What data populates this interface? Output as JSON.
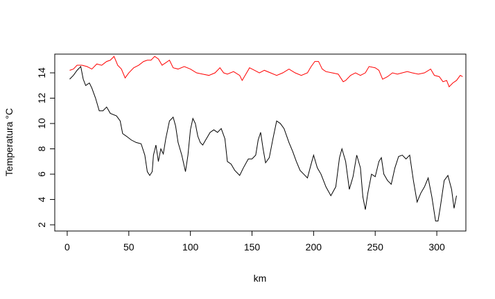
{
  "chart_data": {
    "type": "line",
    "xlabel": "km",
    "ylabel": "Temperatura °C",
    "xlim": [
      -10.1,
      323.6
    ],
    "ylim": [
      1.51,
      15.48
    ],
    "xticks": [
      0,
      50,
      100,
      150,
      200,
      250,
      300
    ],
    "yticks": [
      2,
      4,
      6,
      8,
      10,
      12,
      14
    ],
    "series": [
      {
        "color": "#000000",
        "x": [
          2,
          5,
          8,
          11,
          13,
          15,
          18,
          20,
          23,
          26,
          29,
          32,
          35,
          40,
          43,
          45,
          48,
          52,
          56,
          60,
          63,
          65,
          67,
          69,
          70,
          72,
          74,
          76,
          78,
          80,
          83,
          86,
          88,
          90,
          93,
          96,
          98,
          100,
          102,
          104,
          106,
          108,
          110,
          113,
          116,
          119,
          122,
          125,
          128,
          130,
          133,
          136,
          140,
          143,
          147,
          150,
          153,
          155,
          157,
          159,
          161,
          164,
          167,
          170,
          173,
          176,
          180,
          183,
          186,
          189,
          192,
          195,
          198,
          200,
          203,
          206,
          210,
          214,
          218,
          221,
          223,
          226,
          229,
          232,
          235,
          238,
          240,
          242,
          244,
          247,
          250,
          253,
          255,
          257,
          260,
          263,
          266,
          269,
          272,
          275,
          278,
          281,
          284,
          287,
          290,
          293,
          296,
          299,
          301,
          303,
          306,
          309,
          312,
          314,
          316
        ],
        "values": [
          13.5,
          13.8,
          14.2,
          14.5,
          13.5,
          13.0,
          13.2,
          12.8,
          12.0,
          11.0,
          11.0,
          11.3,
          10.8,
          10.6,
          10.2,
          9.2,
          9.0,
          8.7,
          8.5,
          8.4,
          7.5,
          6.2,
          5.9,
          6.2,
          7.5,
          8.3,
          7.0,
          8.0,
          7.6,
          8.8,
          10.2,
          10.5,
          9.8,
          8.5,
          7.5,
          6.2,
          7.5,
          9.5,
          10.4,
          10.0,
          9.0,
          8.5,
          8.3,
          8.8,
          9.3,
          9.5,
          9.3,
          9.6,
          8.8,
          7.0,
          6.8,
          6.3,
          5.9,
          6.5,
          7.2,
          7.2,
          7.5,
          8.7,
          9.3,
          8.0,
          6.9,
          7.3,
          8.8,
          10.2,
          10.0,
          9.6,
          8.5,
          7.8,
          7.0,
          6.3,
          6.0,
          5.7,
          6.8,
          7.5,
          6.5,
          6.0,
          5.0,
          4.3,
          5.0,
          7.3,
          8.0,
          7.0,
          4.8,
          5.8,
          7.5,
          6.5,
          4.2,
          3.2,
          4.5,
          6.0,
          5.8,
          7.0,
          7.3,
          6.0,
          5.5,
          5.2,
          6.5,
          7.4,
          7.5,
          7.2,
          7.5,
          5.5,
          3.8,
          4.5,
          5.0,
          5.7,
          4.2,
          2.3,
          2.3,
          3.5,
          5.5,
          5.9,
          4.8,
          3.3,
          4.3
        ]
      },
      {
        "color": "#ff0000",
        "x": [
          2,
          5,
          8,
          12,
          16,
          20,
          24,
          28,
          32,
          35,
          38,
          41,
          44,
          47,
          50,
          54,
          58,
          62,
          65,
          68,
          71,
          74,
          77,
          80,
          83,
          86,
          90,
          95,
          100,
          105,
          110,
          115,
          120,
          124,
          127,
          130,
          135,
          140,
          142,
          145,
          148,
          152,
          156,
          160,
          165,
          170,
          175,
          180,
          185,
          190,
          195,
          198,
          201,
          204,
          207,
          210,
          215,
          220,
          224,
          226,
          230,
          234,
          238,
          242,
          245,
          250,
          253,
          256,
          260,
          264,
          268,
          272,
          276,
          280,
          285,
          290,
          295,
          298,
          302,
          305,
          308,
          310,
          313,
          316,
          319,
          321
        ],
        "values": [
          14.2,
          14.3,
          14.6,
          14.6,
          14.5,
          14.3,
          14.7,
          14.6,
          14.9,
          15.0,
          15.3,
          14.6,
          14.3,
          13.6,
          14.0,
          14.4,
          14.6,
          14.9,
          15.0,
          15.0,
          15.3,
          15.1,
          14.6,
          14.8,
          15.0,
          14.4,
          14.3,
          14.5,
          14.3,
          14.0,
          13.9,
          13.8,
          14.0,
          14.4,
          14.0,
          13.9,
          14.1,
          13.8,
          13.4,
          13.9,
          14.4,
          14.2,
          14.0,
          14.2,
          14.0,
          13.8,
          14.0,
          14.3,
          14.0,
          13.8,
          14.0,
          14.5,
          14.9,
          14.9,
          14.3,
          14.1,
          14.0,
          13.9,
          13.3,
          13.4,
          13.8,
          14.0,
          13.8,
          14.0,
          14.5,
          14.4,
          14.2,
          13.5,
          13.7,
          14.0,
          13.9,
          14.0,
          14.1,
          14.0,
          13.9,
          14.0,
          14.3,
          13.8,
          13.7,
          13.3,
          13.4,
          12.9,
          13.2,
          13.4,
          13.8,
          13.7
        ]
      }
    ]
  }
}
